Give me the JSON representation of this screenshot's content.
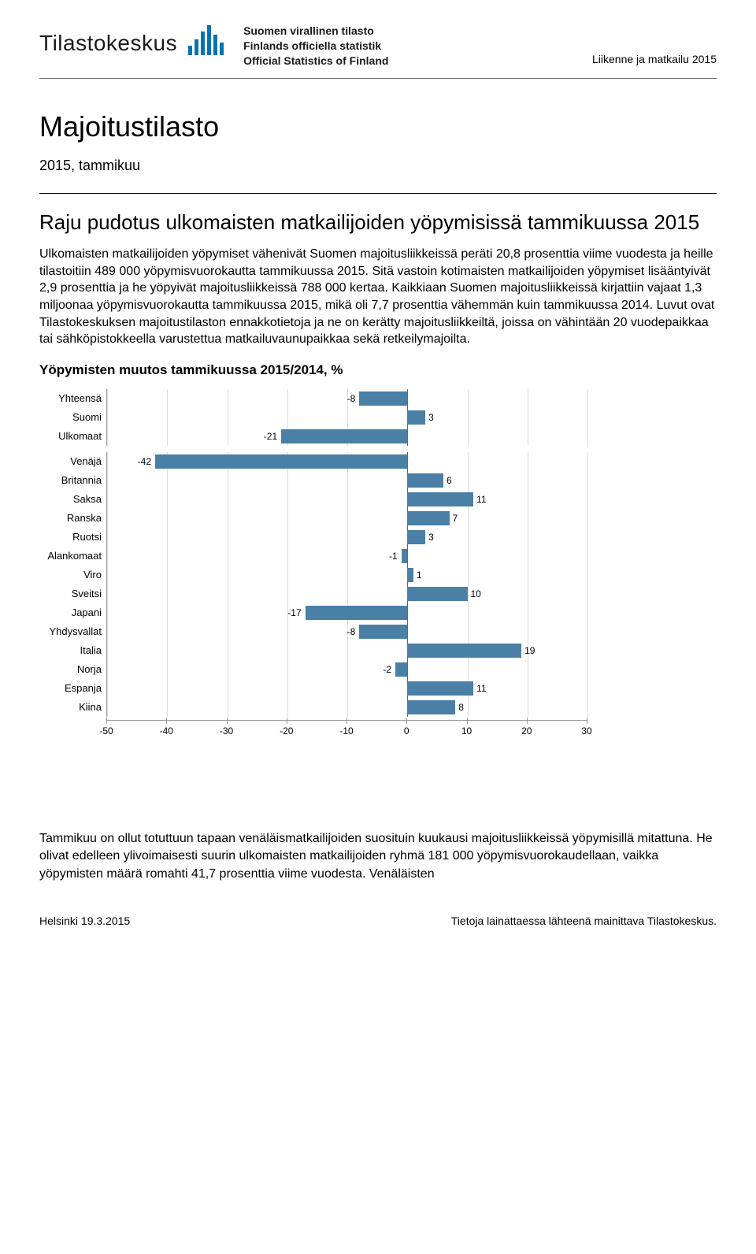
{
  "header": {
    "logo_text": "Tilastokeskus",
    "official_lines": [
      "Suomen virallinen tilasto",
      "Finlands officiella statistik",
      "Official Statistics of Finland"
    ],
    "category": "Liikenne ja matkailu 2015"
  },
  "title": "Majoitustilasto",
  "subtitle": "2015, tammikuu",
  "lead_heading": "Raju pudotus ulkomaisten matkailijoiden yöpymisissä tammikuussa 2015",
  "body_text": "Ulkomaisten matkailijoiden yöpymiset vähenivät Suomen majoitusliikkeissä peräti 20,8 prosenttia viime vuodesta ja heille tilastoitiin 489 000 yöpymisvuorokautta tammikuussa 2015. Sitä vastoin kotimaisten matkailijoiden yöpymiset lisääntyivät 2,9 prosenttia ja he yöpyivät majoitusliikkeissä 788 000 kertaa. Kaikkiaan Suomen majoitusliikkeissä kirjattiin vajaat 1,3 miljoonaa yöpymisvuorokautta tammikuussa 2015, mikä oli 7,7 prosenttia vähemmän kuin tammikuussa 2014. Luvut ovat Tilastokeskuksen majoitustilaston ennakkotietoja ja ne on kerätty majoitusliikkeiltä, joissa on vähintään 20 vuodepaikkaa tai sähköpistokkeella varustettua matkailuvaunupaikkaa sekä retkeilymajoilta.",
  "chart": {
    "title": "Yöpymisten muutos tammikuussa 2015/2014, %",
    "type": "bar",
    "xmin": -50,
    "xmax": 30,
    "xticks": [
      -50,
      -40,
      -30,
      -20,
      -10,
      0,
      10,
      20,
      30
    ],
    "bar_color": "#4a7fa6",
    "grid_color": "#dddddd",
    "axis_color": "#999999",
    "label_fontsize": 13,
    "value_fontsize": 12,
    "groups": [
      [
        {
          "label": "Yhteensä",
          "value": -8
        },
        {
          "label": "Suomi",
          "value": 3
        },
        {
          "label": "Ulkomaat",
          "value": -21
        }
      ],
      [
        {
          "label": "Venäjä",
          "value": -42
        },
        {
          "label": "Britannia",
          "value": 6
        },
        {
          "label": "Saksa",
          "value": 11
        },
        {
          "label": "Ranska",
          "value": 7
        },
        {
          "label": "Ruotsi",
          "value": 3
        },
        {
          "label": "Alankomaat",
          "value": -1
        },
        {
          "label": "Viro",
          "value": 1
        },
        {
          "label": "Sveitsi",
          "value": 10
        },
        {
          "label": "Japani",
          "value": -17
        },
        {
          "label": "Yhdysvallat",
          "value": -8
        },
        {
          "label": "Italia",
          "value": 19
        },
        {
          "label": "Norja",
          "value": -2
        },
        {
          "label": "Espanja",
          "value": 11
        },
        {
          "label": "Kiina",
          "value": 8
        }
      ]
    ]
  },
  "closing_text": "Tammikuu on ollut totuttuun tapaan venäläismatkailijoiden suosituin kuukausi majoitusliikkeissä yöpymisillä mitattuna. He olivat edelleen ylivoimaisesti suurin ulkomaisten matkailijoiden ryhmä 181 000 yöpymisvuorokaudellaan, vaikka yöpymisten määrä romahti 41,7 prosenttia viime vuodesta. Venäläisten",
  "footer": {
    "left": "Helsinki 19.3.2015",
    "right": "Tietoja lainattaessa lähteenä mainittava Tilastokeskus."
  }
}
